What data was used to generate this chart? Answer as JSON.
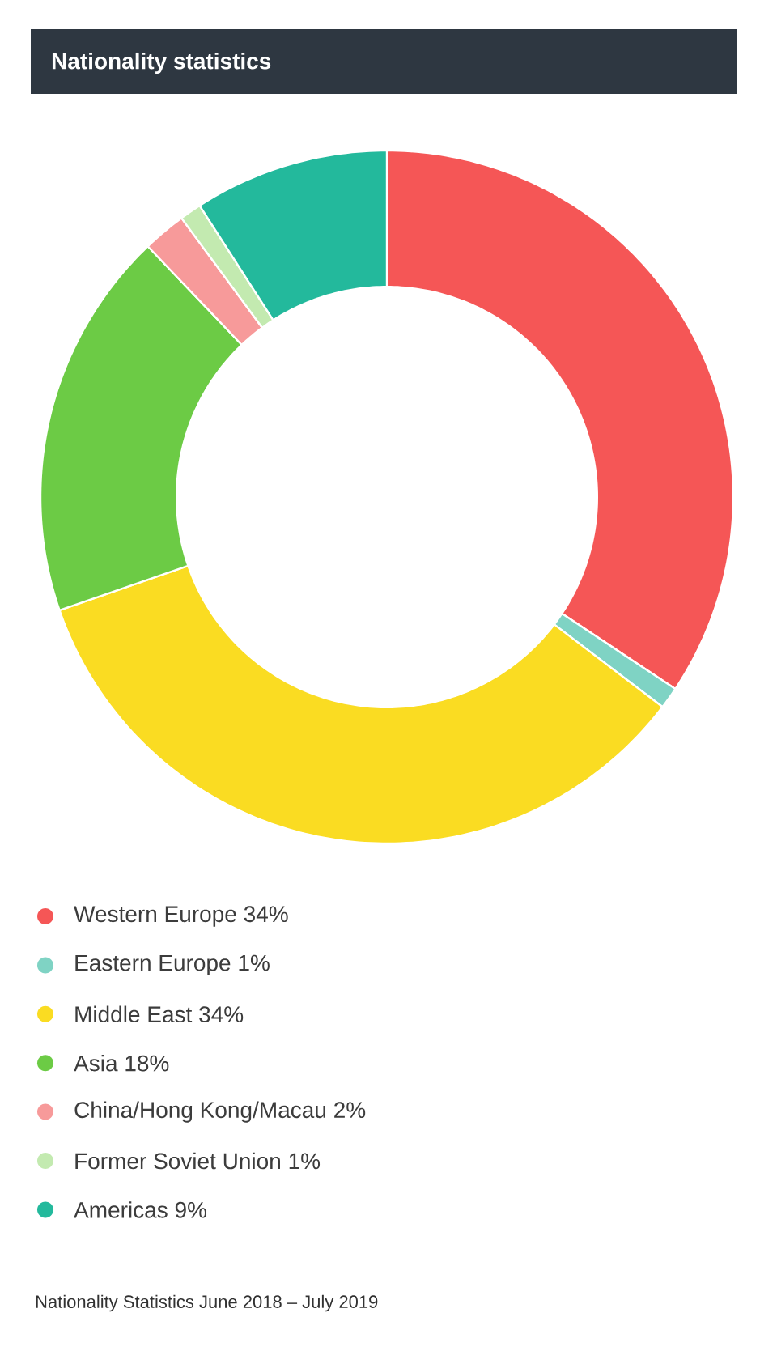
{
  "chart_data": {
    "type": "donut",
    "title": "Nationality statistics",
    "categories": [
      "Western Europe",
      "Eastern Europe",
      "Middle East",
      "Asia",
      "China/Hong Kong/Macau",
      "Former Soviet Union",
      "Americas"
    ],
    "values": [
      34,
      1,
      34,
      18,
      2,
      1,
      9
    ],
    "value_labels": [
      "34%",
      "1%",
      "34%",
      "18%",
      "2%",
      "1%",
      "9%"
    ],
    "colors": [
      "#f55656",
      "#7fd3c4",
      "#fadc22",
      "#6ccb45",
      "#f79a9a",
      "#c3eab0",
      "#23b99c"
    ],
    "legend": "bottom",
    "annotations": [
      "Nationality Statistics June 2018 – July 2019"
    ]
  }
}
